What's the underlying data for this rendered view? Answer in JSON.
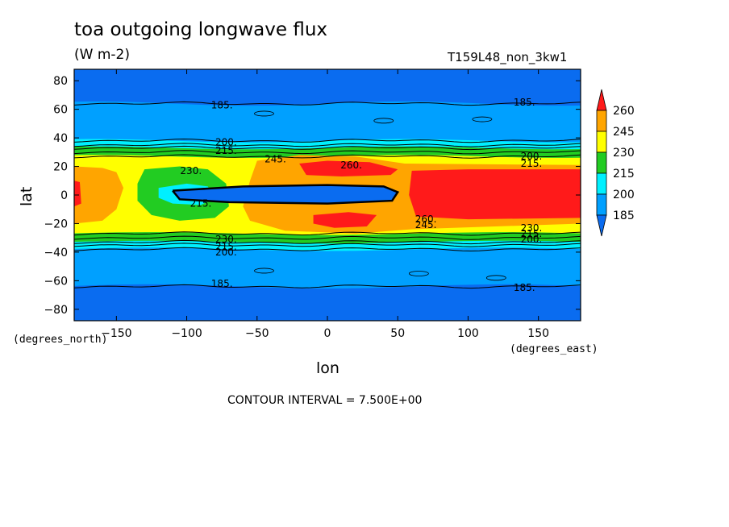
{
  "chart_data": {
    "type": "heatmap",
    "title": "toa outgoing longwave flux",
    "units": "(W m-2)",
    "run_label": "T159L48_non_3kw1",
    "xlabel": "lon",
    "ylabel": "lat",
    "x_unit": "(degrees_east)",
    "y_unit": "(degrees_north)",
    "xlim": [
      -180,
      180
    ],
    "ylim": [
      -88,
      88
    ],
    "x_ticks": [
      -150,
      -100,
      -50,
      0,
      50,
      100,
      150
    ],
    "y_ticks": [
      -80,
      -60,
      -40,
      -20,
      0,
      20,
      40,
      60,
      80
    ],
    "contour_interval_text": "CONTOUR INTERVAL = 7.500E+00",
    "colorbar": {
      "levels": [
        185,
        200,
        215,
        230,
        245,
        260
      ],
      "colors": [
        "#0a6cf0",
        "#00a0ff",
        "#00f0ff",
        "#22cc22",
        "#ffff00",
        "#ffa500",
        "#ff1a1a"
      ]
    },
    "contour_labels": [
      {
        "text": "185.",
        "lon": -75,
        "lat": 63
      },
      {
        "text": "185.",
        "lon": 140,
        "lat": 65
      },
      {
        "text": "185.",
        "lon": -75,
        "lat": -62
      },
      {
        "text": "185.",
        "lon": 140,
        "lat": -65
      },
      {
        "text": "200.",
        "lon": -72,
        "lat": 37
      },
      {
        "text": "215.",
        "lon": -72,
        "lat": 31
      },
      {
        "text": "245.",
        "lon": -37,
        "lat": 25
      },
      {
        "text": "230.",
        "lon": -97,
        "lat": 17
      },
      {
        "text": "260.",
        "lon": 17,
        "lat": 21
      },
      {
        "text": "200.",
        "lon": 145,
        "lat": 27
      },
      {
        "text": "215.",
        "lon": 145,
        "lat": 22
      },
      {
        "text": "260.",
        "lon": 70,
        "lat": -17
      },
      {
        "text": "245.",
        "lon": 70,
        "lat": -21
      },
      {
        "text": "215.",
        "lon": -90,
        "lat": -6
      },
      {
        "text": "230.",
        "lon": -72,
        "lat": -31
      },
      {
        "text": "215.",
        "lon": -72,
        "lat": -36
      },
      {
        "text": "200.",
        "lon": -72,
        "lat": -40
      },
      {
        "text": "230.",
        "lon": 145,
        "lat": -23
      },
      {
        "text": "215.",
        "lon": 145,
        "lat": -27
      },
      {
        "text": "200.",
        "lon": 145,
        "lat": -31
      }
    ]
  }
}
